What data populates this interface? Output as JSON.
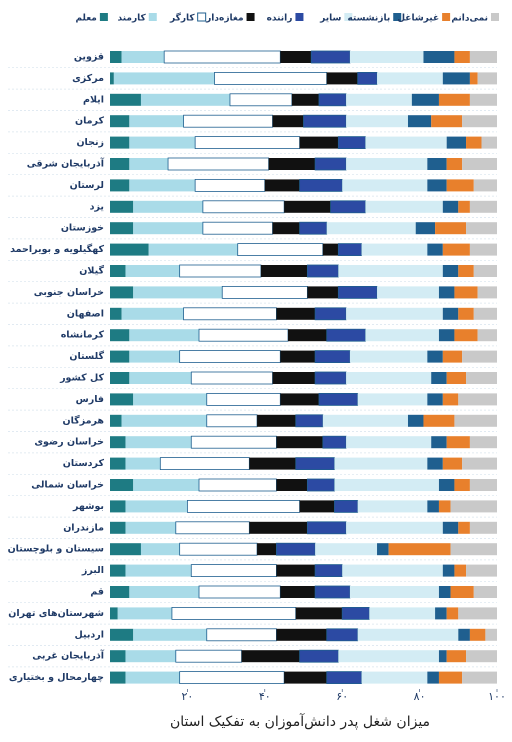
{
  "chart_data": {
    "type": "bar",
    "orientation": "horizontal",
    "stacked": true,
    "title": "میزان شغل پدر دانش‌آموزان به تفکیک استان",
    "categories": [
      "قزوین",
      "مرکزی",
      "ایلام",
      "کرمان",
      "زنجان",
      "آذربایجان شرقی",
      "لرستان",
      "یزد",
      "خوزستان",
      "کهگیلویه و بویراحمد",
      "گیلان",
      "خراسان جنوبی",
      "اصفهان",
      "کرمانشاه",
      "گلستان",
      "کل کشور",
      "فارس",
      "هرمزگان",
      "خراسان رضوی",
      "کردستان",
      "خراسان شمالی",
      "بوشهر",
      "مازندران",
      "سیستان و بلوچستان",
      "البرز",
      "قم",
      "شهرستان‌های تهران",
      "اردبیل",
      "آذربایجان غربی",
      "چهارمحال و بختیاری"
    ],
    "series": [
      {
        "name": "معلم",
        "color": "#1e7b83",
        "values": [
          3,
          1,
          8,
          5,
          5,
          5,
          5,
          6,
          6,
          10,
          4,
          6,
          3,
          5,
          5,
          5,
          6,
          3,
          4,
          4,
          6,
          4,
          4,
          8,
          4,
          5,
          2,
          6,
          4,
          4
        ]
      },
      {
        "name": "کارمند",
        "color": "#a9dbe8",
        "values": [
          11,
          26,
          23,
          14,
          17,
          10,
          17,
          18,
          18,
          23,
          14,
          23,
          16,
          18,
          13,
          16,
          19,
          22,
          17,
          9,
          17,
          16,
          13,
          10,
          17,
          18,
          14,
          19,
          13,
          14
        ]
      },
      {
        "name": "کارگر",
        "color": "#ffffff",
        "values": [
          30,
          29,
          16,
          23,
          27,
          26,
          18,
          21,
          18,
          22,
          21,
          22,
          24,
          23,
          26,
          21,
          19,
          13,
          22,
          23,
          20,
          29,
          19,
          20,
          22,
          21,
          32,
          18,
          17,
          27
        ]
      },
      {
        "name": "مغازه‌دار",
        "color": "#111111",
        "values": [
          8,
          8,
          7,
          8,
          10,
          12,
          9,
          12,
          7,
          4,
          12,
          8,
          10,
          10,
          9,
          11,
          10,
          10,
          12,
          12,
          8,
          9,
          15,
          5,
          10,
          9,
          12,
          13,
          15,
          11
        ]
      },
      {
        "name": "راننده",
        "color": "#2c4aa3",
        "values": [
          10,
          5,
          7,
          11,
          7,
          8,
          11,
          9,
          7,
          6,
          8,
          10,
          8,
          10,
          9,
          8,
          10,
          7,
          6,
          10,
          7,
          6,
          10,
          10,
          7,
          9,
          7,
          8,
          10,
          9
        ]
      },
      {
        "name": "سایر",
        "color": "#d3ecf4",
        "values": [
          19,
          17,
          17,
          16,
          21,
          21,
          22,
          20,
          23,
          17,
          27,
          16,
          25,
          19,
          20,
          22,
          18,
          22,
          22,
          24,
          27,
          18,
          25,
          16,
          26,
          23,
          17,
          26,
          26,
          17
        ]
      },
      {
        "name": "بازنشسته",
        "color": "#1f5f8f",
        "values": [
          8,
          7,
          7,
          6,
          5,
          5,
          5,
          4,
          5,
          4,
          4,
          4,
          4,
          4,
          4,
          4,
          4,
          4,
          4,
          4,
          4,
          3,
          4,
          3,
          3,
          3,
          3,
          3,
          2,
          3
        ]
      },
      {
        "name": "غیرشاغل",
        "color": "#e8802c",
        "values": [
          4,
          2,
          8,
          8,
          4,
          4,
          7,
          3,
          8,
          7,
          4,
          6,
          4,
          6,
          5,
          5,
          4,
          8,
          6,
          5,
          4,
          3,
          3,
          16,
          3,
          6,
          3,
          4,
          5,
          6
        ]
      },
      {
        "name": "نمی‌دانم",
        "color": "#c9c9c9",
        "values": [
          7,
          5,
          7,
          9,
          4,
          9,
          6,
          7,
          8,
          7,
          6,
          5,
          6,
          5,
          9,
          8,
          10,
          11,
          7,
          9,
          7,
          12,
          7,
          12,
          8,
          6,
          10,
          3,
          8,
          9
        ]
      }
    ],
    "xlim": [
      0,
      100
    ],
    "xticks": [
      {
        "value": 20,
        "label": "۲۰"
      },
      {
        "value": 40,
        "label": "۴۰"
      },
      {
        "value": 60,
        "label": "۶۰"
      },
      {
        "value": 80,
        "label": "۸۰"
      },
      {
        "value": 100,
        "label": "۱۰۰"
      }
    ]
  }
}
